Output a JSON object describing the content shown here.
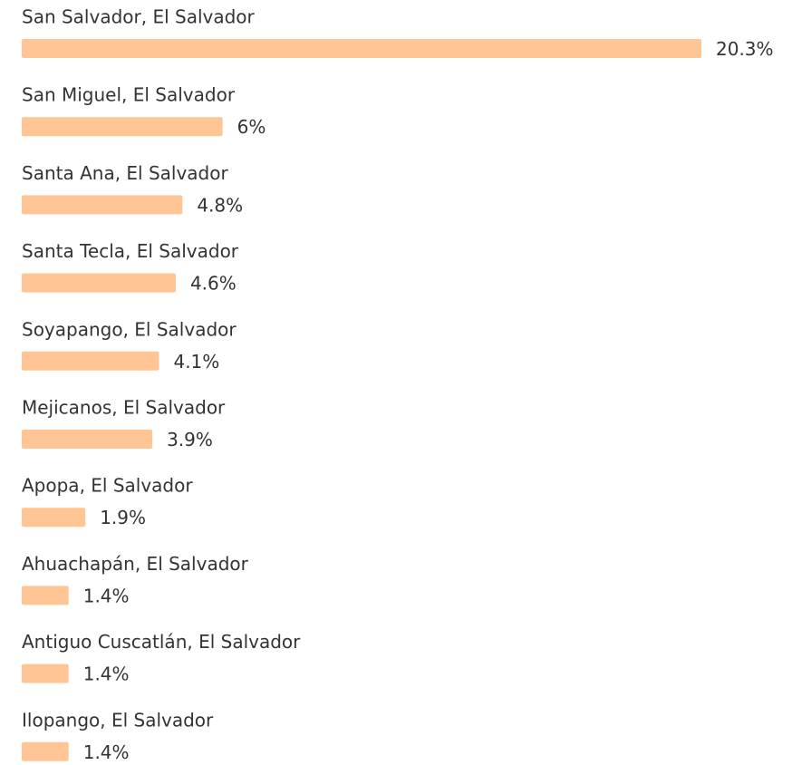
{
  "chart_data": {
    "type": "bar",
    "orientation": "horizontal",
    "color": "#ffc594",
    "categories": [
      "San Salvador, El Salvador",
      "San Miguel, El Salvador",
      "Santa Ana, El Salvador",
      "Santa Tecla, El Salvador",
      "Soyapango, El Salvador",
      "Mejicanos, El Salvador",
      "Apopa, El Salvador",
      "Ahuachapán, El Salvador",
      "Antiguo Cuscatlán, El Salvador",
      "Ilopango, El Salvador"
    ],
    "values": [
      20.3,
      6,
      4.8,
      4.6,
      4.1,
      3.9,
      1.9,
      1.4,
      1.4,
      1.4
    ],
    "value_labels": [
      "20.3%",
      "6%",
      "4.8%",
      "4.6%",
      "4.1%",
      "3.9%",
      "1.9%",
      "1.4%",
      "1.4%",
      "1.4%"
    ]
  }
}
